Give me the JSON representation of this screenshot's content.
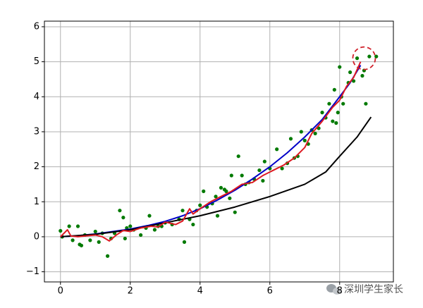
{
  "chart_data": {
    "type": "line",
    "xlim": [
      -0.46,
      9.54
    ],
    "ylim": [
      -1.29,
      6.16
    ],
    "xticks": [
      0,
      2,
      4,
      6,
      8
    ],
    "yticks": [
      {
        "value": -1,
        "label": "−1"
      },
      0,
      1,
      2,
      3,
      4,
      5,
      6
    ],
    "grid": true,
    "series": [
      {
        "mode": "markers",
        "color": "#007a00",
        "x": [
          0,
          0.05,
          0.25,
          0.35,
          0.5,
          0.55,
          0.6,
          0.7,
          0.85,
          1.0,
          1.1,
          1.2,
          1.35,
          1.45,
          1.55,
          1.7,
          1.8,
          1.85,
          1.9,
          2.0,
          2.1,
          2.3,
          2.45,
          2.55,
          2.7,
          2.8,
          2.9,
          3.0,
          3.2,
          3.4,
          3.5,
          3.55,
          3.7,
          3.8,
          3.9,
          4.0,
          4.1,
          4.2,
          4.35,
          4.45,
          4.5,
          4.6,
          4.7,
          4.75,
          4.85,
          4.9,
          5.0,
          5.1,
          5.2,
          5.3,
          5.4,
          5.55,
          5.7,
          5.8,
          5.85,
          6.0,
          6.2,
          6.35,
          6.5,
          6.6,
          6.7,
          6.8,
          6.9,
          7.0,
          7.1,
          7.2,
          7.3,
          7.4,
          7.5,
          7.6,
          7.7,
          7.8,
          7.85,
          7.9,
          7.95,
          8.0,
          8.05,
          8.1,
          8.25,
          8.3,
          8.4,
          8.5,
          8.65,
          8.7,
          8.75,
          8.85,
          9.05
        ],
        "values": [
          0.17,
          0,
          0.3,
          -0.1,
          0.3,
          -0.22,
          -0.25,
          0.05,
          -0.1,
          0.15,
          -0.15,
          0.1,
          -0.55,
          -0.05,
          0.1,
          0.75,
          0.55,
          -0.05,
          0.25,
          0.3,
          0.2,
          0.05,
          0.25,
          0.6,
          0.2,
          0.3,
          0.3,
          0.4,
          0.35,
          0.5,
          0.75,
          -0.15,
          0.5,
          0.35,
          0.75,
          0.9,
          1.3,
          0.85,
          0.95,
          1.15,
          0.6,
          1.4,
          1.35,
          1.3,
          1.1,
          1.75,
          0.7,
          2.3,
          1.75,
          1.5,
          1.55,
          1.65,
          1.9,
          1.6,
          2.15,
          1.95,
          2.5,
          1.95,
          2.1,
          2.8,
          2.25,
          2.3,
          3.0,
          2.75,
          2.65,
          3.05,
          2.95,
          3.1,
          3.55,
          3.4,
          3.8,
          3.3,
          4.2,
          3.25,
          3.55,
          4.85,
          4.0,
          3.8,
          4.4,
          4.7,
          4.45,
          5.1,
          4.6,
          4.75,
          3.8,
          5.15,
          5.15
        ]
      },
      {
        "mode": "line",
        "color": "#0000c8",
        "x": [
          0,
          0.5,
          1,
          1.5,
          2,
          2.5,
          3,
          3.5,
          4,
          4.5,
          5,
          5.5,
          6,
          6.5,
          7,
          7.5,
          8,
          8.3,
          8.6
        ],
        "values": [
          0,
          0.03,
          0.08,
          0.15,
          0.22,
          0.32,
          0.44,
          0.6,
          0.8,
          1.05,
          1.33,
          1.65,
          2.0,
          2.4,
          2.85,
          3.35,
          4.0,
          4.4,
          4.9
        ]
      },
      {
        "mode": "line",
        "color": "#000000",
        "x": [
          0,
          1,
          2,
          3,
          4,
          5,
          6,
          7,
          7.6,
          8,
          8.5,
          8.9
        ],
        "values": [
          0,
          0.07,
          0.2,
          0.4,
          0.6,
          0.85,
          1.15,
          1.5,
          1.85,
          2.3,
          2.85,
          3.42
        ]
      },
      {
        "mode": "line",
        "color": "#dd1a22",
        "x": [
          0,
          0.2,
          0.3,
          0.5,
          0.8,
          1.0,
          1.2,
          1.4,
          1.6,
          1.8,
          2.0,
          2.3,
          2.6,
          2.8,
          3.0,
          3.3,
          3.5,
          3.7,
          3.8,
          4.0,
          4.3,
          4.6,
          4.9,
          5.2,
          5.5,
          5.8,
          6.1,
          6.4,
          6.7,
          7.0,
          7.2,
          7.5,
          7.8,
          8.0,
          8.2,
          8.4,
          8.6
        ],
        "values": [
          0,
          0.2,
          0.02,
          0,
          0.03,
          0.05,
          0,
          -0.12,
          0.05,
          0.18,
          0.15,
          0.25,
          0.3,
          0.28,
          0.42,
          0.35,
          0.45,
          0.8,
          0.65,
          0.8,
          1.0,
          1.15,
          1.3,
          1.5,
          1.55,
          1.75,
          1.9,
          2.05,
          2.25,
          2.55,
          2.95,
          3.3,
          3.7,
          3.9,
          4.3,
          4.55,
          5.0
        ]
      }
    ],
    "highlight": {
      "x": 8.7,
      "y": 5.1,
      "color": "#d0202a"
    },
    "watermark": "深圳学生家长"
  }
}
